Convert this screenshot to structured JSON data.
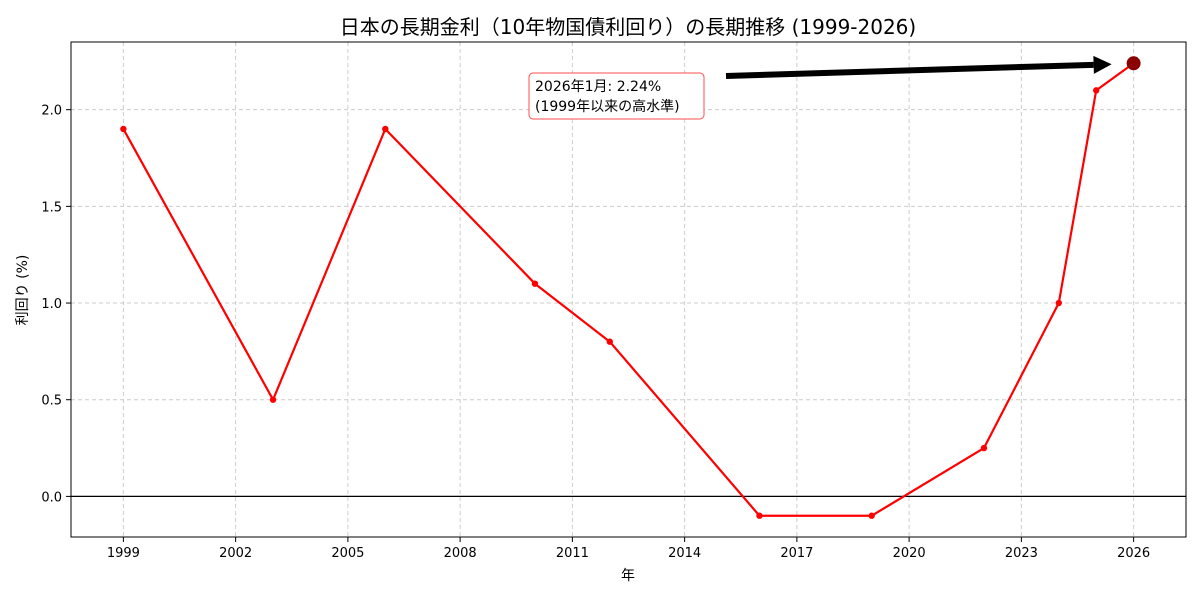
{
  "chart_data": {
    "type": "line",
    "title": "日本の長期金利（10年物国債利回り）の長期推移 (1999-2026)",
    "xlabel": "年",
    "ylabel": "利回り (%)",
    "x": [
      1999,
      2003,
      2006,
      2010,
      2012,
      2016,
      2019,
      2022,
      2024,
      2025,
      2026
    ],
    "series": [
      {
        "name": "10年物国債利回り",
        "color": "#ff0000",
        "values": [
          1.9,
          0.5,
          1.9,
          1.1,
          0.8,
          -0.1,
          -0.1,
          0.25,
          1.0,
          2.1,
          2.24
        ]
      }
    ],
    "highlight_point": {
      "x": 2026,
      "y": 2.24,
      "color": "#8b0000"
    },
    "annotation": {
      "line1": "2026年1月: 2.24%",
      "line2": "(1999年以来の高水準)",
      "box_edge_color": "#ff4d4d",
      "arrow_color": "#000000"
    },
    "xticks": [
      1999,
      2002,
      2005,
      2008,
      2011,
      2014,
      2017,
      2020,
      2023,
      2026
    ],
    "yticks": [
      0.0,
      0.5,
      1.0,
      1.5,
      2.0
    ],
    "ytick_labels": [
      "0.0",
      "0.5",
      "1.0",
      "1.5",
      "2.0"
    ],
    "xlim": [
      1997.6,
      2027.4
    ],
    "ylim": [
      -0.21,
      2.35
    ],
    "grid": true,
    "zero_line": true,
    "legend": null
  }
}
